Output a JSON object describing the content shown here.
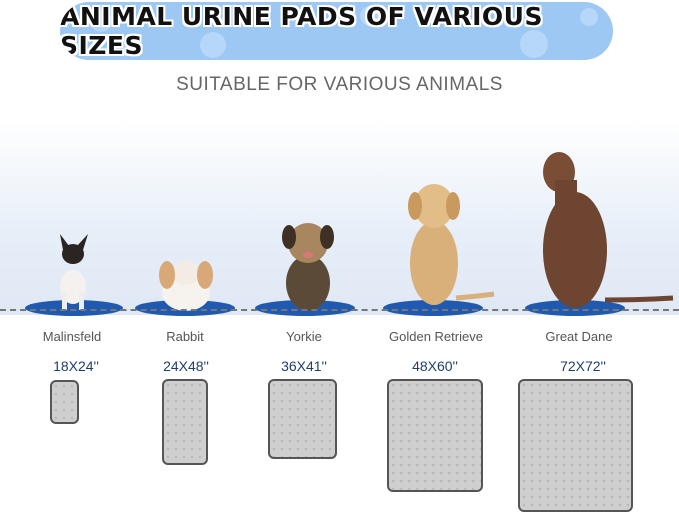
{
  "banner": {
    "title": "ANIMAL URINE PADS OF VARIOUS SIZES"
  },
  "subtitle": "SUITABLE FOR VARIOUS ANIMALS",
  "animals": [
    {
      "name": "Malinsfeld",
      "size": "18X24''"
    },
    {
      "name": "Rabbit",
      "size": "24X48''"
    },
    {
      "name": "Yorkie",
      "size": "36X41''"
    },
    {
      "name": "Golden Retrieve",
      "size": "48X60''"
    },
    {
      "name": "Great Dane",
      "size": "72X72''"
    }
  ],
  "colors": {
    "banner": "#9cc8f3",
    "disc": "#1f5ab0",
    "size_text": "#1f3e6e",
    "pad": "#cfcfcf"
  }
}
